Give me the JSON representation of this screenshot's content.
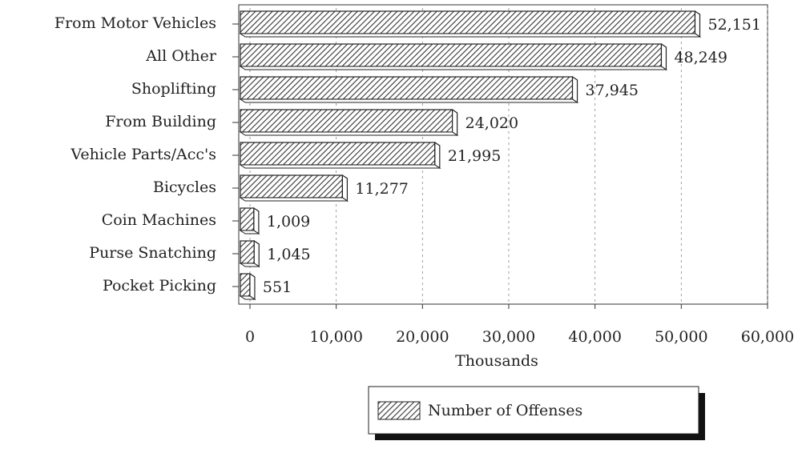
{
  "chart_data": {
    "type": "bar",
    "orientation": "horizontal",
    "categories": [
      "From Motor Vehicles",
      "All Other",
      "Shoplifting",
      "From Building",
      "Vehicle Parts/Acc's",
      "Bicycles",
      "Coin Machines",
      "Purse Snatching",
      "Pocket Picking"
    ],
    "series": [
      {
        "name": "Number of Offenses",
        "color": "#333333",
        "values": [
          52151,
          48249,
          37945,
          24020,
          21995,
          11277,
          1009,
          1045,
          551
        ],
        "value_labels": [
          "52,151",
          "48,249",
          "37,945",
          "24,020",
          "21,995",
          "11,277",
          "1,009",
          "1,045",
          "551"
        ]
      }
    ],
    "x_label": "Thousands",
    "xlim": [
      0,
      60000
    ],
    "xticks": [
      0,
      {
        "value": 10000,
        "label": "10,000"
      },
      {
        "value": 20000,
        "label": "20,000"
      },
      {
        "value": 30000,
        "label": "30,000"
      },
      {
        "value": 40000,
        "label": "40,000"
      },
      {
        "value": 50000,
        "label": "50,000"
      },
      {
        "value": 60000,
        "label": "60,000"
      }
    ],
    "grid": true,
    "legend": "bottom"
  }
}
